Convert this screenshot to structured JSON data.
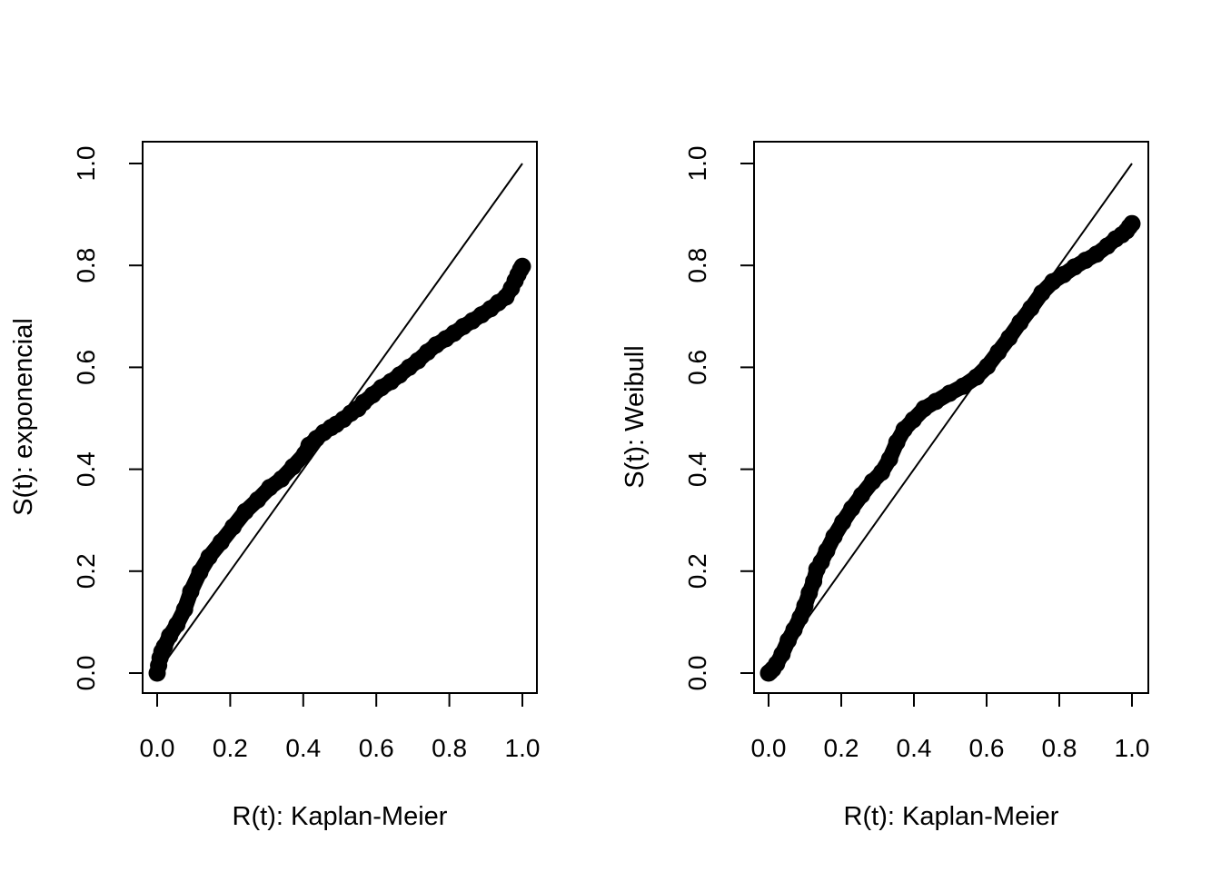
{
  "figure": {
    "background": "#ffffff",
    "foreground": "#000000"
  },
  "chart_data": [
    {
      "type": "scatter",
      "title": "",
      "xlabel": "R(t): Kaplan-Meier",
      "ylabel": "S(t): exponencial",
      "xlim": [
        0,
        1
      ],
      "ylim": [
        0,
        1
      ],
      "grid": false,
      "legend": null,
      "xtick_labels": [
        "0.0",
        "0.2",
        "0.4",
        "0.6",
        "0.8",
        "1.0"
      ],
      "ytick_labels": [
        "0.0",
        "0.2",
        "0.4",
        "0.6",
        "0.8",
        "1.0"
      ],
      "marker": {
        "shape": "filled-circle",
        "color": "#000000"
      },
      "reference_line": {
        "type": "identity",
        "from": [
          0,
          0
        ],
        "to": [
          1,
          1
        ],
        "color": "#000000"
      },
      "series": [
        {
          "name": "S(t) exponencial vs R(t) Kaplan-Meier",
          "x": [
            0.0,
            0.004,
            0.008,
            0.013,
            0.02,
            0.034,
            0.054,
            0.075,
            0.092,
            0.117,
            0.142,
            0.175,
            0.208,
            0.241,
            0.275,
            0.308,
            0.34,
            0.372,
            0.404,
            0.416,
            0.436,
            0.456,
            0.476,
            0.49,
            0.51,
            0.53,
            0.55,
            0.565,
            0.59,
            0.614,
            0.64,
            0.664,
            0.69,
            0.714,
            0.74,
            0.764,
            0.79,
            0.813,
            0.838,
            0.863,
            0.888,
            0.913,
            0.934,
            0.955,
            0.97,
            0.98,
            0.988,
            0.995,
            1.0
          ],
          "y": [
            0.0,
            0.015,
            0.03,
            0.042,
            0.052,
            0.073,
            0.095,
            0.125,
            0.16,
            0.198,
            0.228,
            0.257,
            0.287,
            0.317,
            0.34,
            0.364,
            0.381,
            0.405,
            0.43,
            0.447,
            0.46,
            0.472,
            0.482,
            0.488,
            0.498,
            0.51,
            0.519,
            0.531,
            0.546,
            0.56,
            0.572,
            0.585,
            0.6,
            0.613,
            0.63,
            0.644,
            0.656,
            0.667,
            0.68,
            0.691,
            0.703,
            0.715,
            0.727,
            0.738,
            0.755,
            0.77,
            0.782,
            0.792,
            0.798
          ]
        }
      ]
    },
    {
      "type": "scatter",
      "title": "",
      "xlabel": "R(t): Kaplan-Meier",
      "ylabel": "S(t): Weibull",
      "xlim": [
        0,
        1
      ],
      "ylim": [
        0,
        1
      ],
      "grid": false,
      "legend": null,
      "xtick_labels": [
        "0.0",
        "0.2",
        "0.4",
        "0.6",
        "0.8",
        "1.0"
      ],
      "ytick_labels": [
        "0.0",
        "0.2",
        "0.4",
        "0.6",
        "0.8",
        "1.0"
      ],
      "marker": {
        "shape": "filled-circle",
        "color": "#000000"
      },
      "reference_line": {
        "type": "identity",
        "from": [
          0,
          0
        ],
        "to": [
          1,
          1
        ],
        "color": "#000000"
      },
      "series": [
        {
          "name": "S(t) Weibull vs R(t) Kaplan-Meier",
          "x": [
            0.0,
            0.005,
            0.012,
            0.022,
            0.037,
            0.054,
            0.07,
            0.087,
            0.1,
            0.112,
            0.124,
            0.133,
            0.145,
            0.16,
            0.18,
            0.204,
            0.229,
            0.256,
            0.286,
            0.311,
            0.333,
            0.353,
            0.373,
            0.398,
            0.428,
            0.46,
            0.498,
            0.535,
            0.572,
            0.602,
            0.632,
            0.662,
            0.692,
            0.722,
            0.752,
            0.782,
            0.812,
            0.842,
            0.872,
            0.902,
            0.932,
            0.955,
            0.972,
            0.985,
            0.993,
            1.0
          ],
          "y": [
            0.0,
            0.003,
            0.008,
            0.018,
            0.037,
            0.064,
            0.085,
            0.109,
            0.132,
            0.157,
            0.18,
            0.204,
            0.218,
            0.24,
            0.268,
            0.296,
            0.323,
            0.349,
            0.376,
            0.394,
            0.42,
            0.453,
            0.478,
            0.497,
            0.519,
            0.533,
            0.549,
            0.563,
            0.581,
            0.602,
            0.63,
            0.658,
            0.688,
            0.716,
            0.746,
            0.768,
            0.782,
            0.797,
            0.81,
            0.822,
            0.838,
            0.852,
            0.86,
            0.868,
            0.876,
            0.882
          ]
        }
      ]
    }
  ]
}
